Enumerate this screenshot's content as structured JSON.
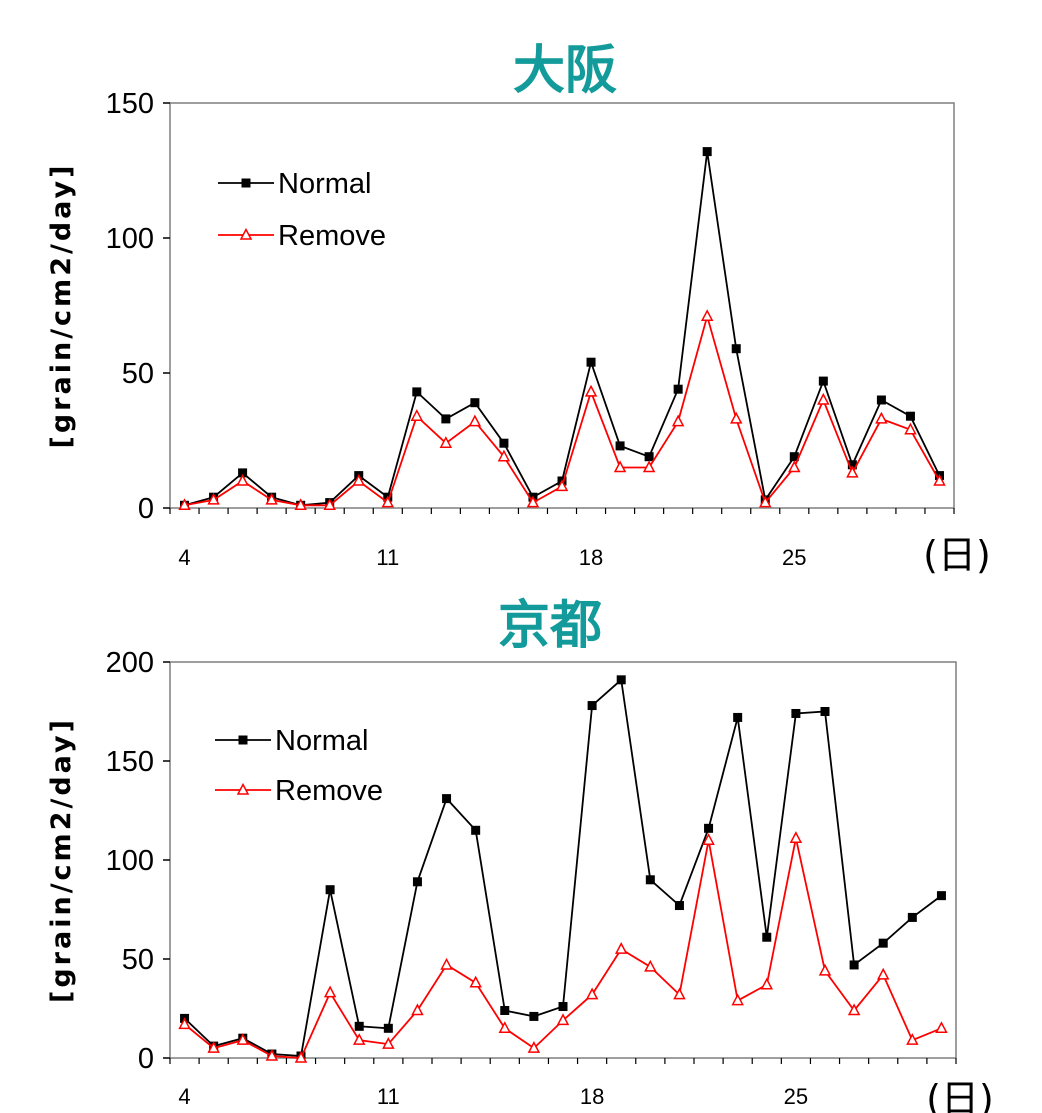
{
  "colors": {
    "title": "#139a9a",
    "normal": "#000000",
    "remove": "#ff0000"
  },
  "chart_data": [
    {
      "type": "line",
      "title": "大阪",
      "ylabel": "[grain/cm2/day]",
      "xunit": "(日)",
      "x": [
        4,
        5,
        6,
        7,
        8,
        9,
        10,
        11,
        12,
        13,
        14,
        15,
        16,
        17,
        18,
        19,
        20,
        21,
        22,
        23,
        24,
        25,
        26,
        27,
        28,
        29,
        30
      ],
      "xticks": [
        4,
        11,
        18,
        25
      ],
      "ylim": [
        0,
        150
      ],
      "yticks": [
        0,
        50,
        100,
        150
      ],
      "legend_position": "top-left",
      "series": [
        {
          "name": "Normal",
          "marker": "square",
          "values": [
            1,
            4,
            13,
            4,
            1,
            2,
            12,
            4,
            43,
            33,
            39,
            24,
            4,
            10,
            54,
            23,
            19,
            44,
            132,
            59,
            3,
            19,
            47,
            16,
            40,
            34,
            12
          ]
        },
        {
          "name": "Remove",
          "marker": "triangle",
          "values": [
            1,
            3,
            10,
            3,
            1,
            1,
            10,
            2,
            34,
            24,
            32,
            19,
            2,
            8,
            43,
            15,
            15,
            32,
            71,
            33,
            2,
            15,
            40,
            13,
            33,
            29,
            10
          ]
        }
      ]
    },
    {
      "type": "line",
      "title": "京都",
      "ylabel": "[grain/cm2/day]",
      "xunit": "(日)",
      "x": [
        4,
        5,
        6,
        7,
        8,
        9,
        10,
        11,
        12,
        13,
        14,
        15,
        16,
        17,
        18,
        19,
        20,
        21,
        22,
        23,
        24,
        25,
        26,
        27,
        28,
        29,
        30
      ],
      "xticks": [
        4,
        11,
        18,
        25
      ],
      "ylim": [
        0,
        200
      ],
      "yticks": [
        0,
        50,
        100,
        150,
        200
      ],
      "legend_position": "top-left",
      "series": [
        {
          "name": "Normal",
          "marker": "square",
          "values": [
            20,
            6,
            10,
            2,
            1,
            85,
            16,
            15,
            89,
            131,
            115,
            24,
            21,
            26,
            178,
            191,
            90,
            77,
            116,
            172,
            61,
            174,
            175,
            47,
            58,
            71,
            82
          ]
        },
        {
          "name": "Remove",
          "marker": "triangle",
          "values": [
            17,
            5,
            9,
            1,
            0,
            33,
            9,
            7,
            24,
            47,
            38,
            15,
            5,
            19,
            32,
            55,
            46,
            32,
            110,
            29,
            37,
            111,
            44,
            24,
            42,
            9,
            15
          ]
        }
      ]
    }
  ]
}
